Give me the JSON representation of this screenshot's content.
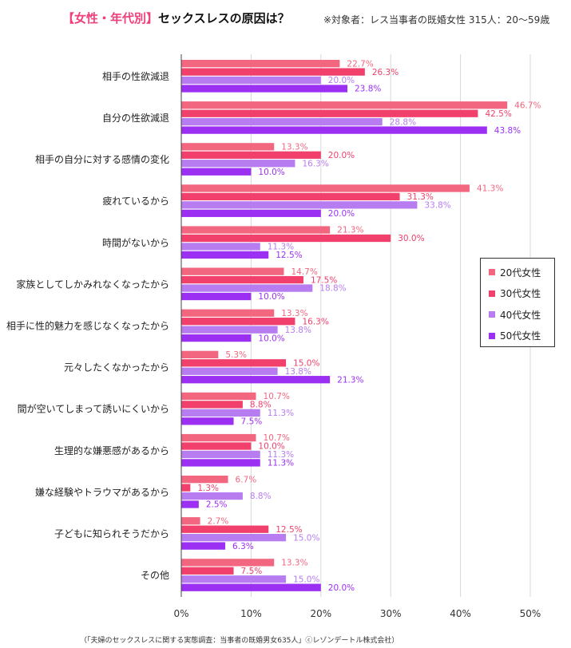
{
  "header": {
    "tag": "【女性・年代別】",
    "title": "セックスレスの原因は？",
    "subtitle": "※対象者：レス当事者の既婚女性 315人：20〜59歳"
  },
  "footer": {
    "source": "（「夫婦のセックスレスに関する実態調査：当事者の既婚男女635人」ⓒレゾンデートル株式会社）"
  },
  "colors": {
    "s20": "#f2667f",
    "s30": "#f0406b",
    "s40": "#b77cf0",
    "s50": "#9b30f3",
    "grid": "#d8d8d8",
    "axis": "#444444"
  },
  "chart_data": {
    "type": "bar",
    "orientation": "horizontal",
    "title": "セックスレスの原因は？",
    "xlim": [
      0,
      50
    ],
    "x_ticks": [
      "0%",
      "10%",
      "20%",
      "30%",
      "40%",
      "50%"
    ],
    "grid": true,
    "legend_position": "right",
    "categories": [
      "相手の性欲減退",
      "自分の性欲減退",
      "相手の自分に対する感情の変化",
      "疲れているから",
      "時間がないから",
      "家族としてしかみれなくなったから",
      "相手に性的魅力を感じなくなったから",
      "元々したくなかったから",
      "間が空いてしまって誘いにくいから",
      "生理的な嫌悪感があるから",
      "嫌な経験やトラウマがあるから",
      "子どもに知られそうだから",
      "その他"
    ],
    "series": [
      {
        "name": "20代女性",
        "values": [
          22.7,
          46.7,
          13.3,
          41.3,
          21.3,
          14.7,
          13.3,
          5.3,
          10.7,
          10.7,
          6.7,
          2.7,
          13.3
        ]
      },
      {
        "name": "30代女性",
        "values": [
          26.3,
          42.5,
          20.0,
          31.3,
          30.0,
          17.5,
          16.3,
          15.0,
          8.8,
          10.0,
          1.3,
          12.5,
          7.5
        ]
      },
      {
        "name": "40代女性",
        "values": [
          20.0,
          28.8,
          16.3,
          33.8,
          11.3,
          18.8,
          13.8,
          13.8,
          11.3,
          11.3,
          8.8,
          15.0,
          15.0
        ]
      },
      {
        "name": "50代女性",
        "values": [
          23.8,
          43.8,
          10.0,
          20.0,
          12.5,
          10.0,
          10.0,
          21.3,
          7.5,
          11.3,
          2.5,
          6.3,
          20.0
        ]
      }
    ]
  }
}
